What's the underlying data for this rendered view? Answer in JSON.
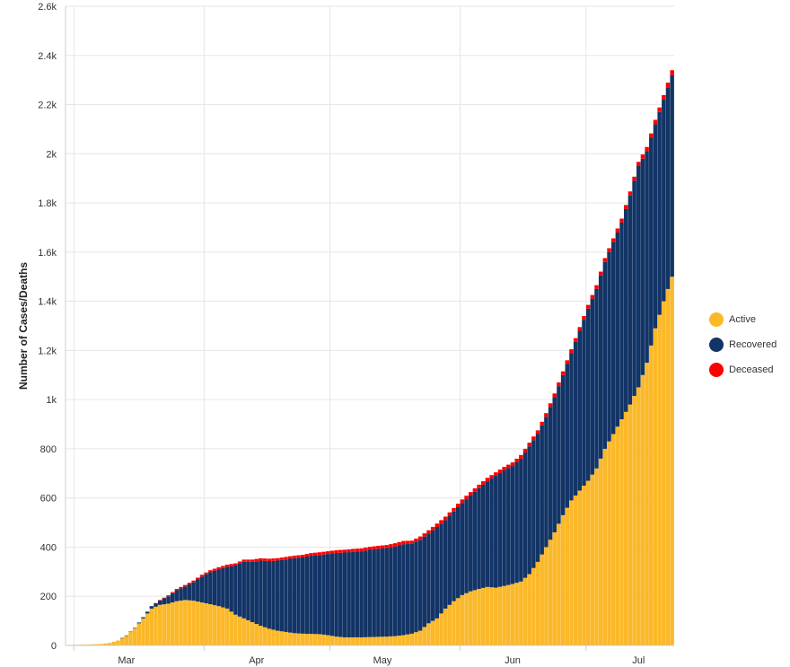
{
  "chart_data": {
    "type": "bar",
    "stacked": true,
    "ylabel": "Number of Cases/Deaths",
    "xlabel": "",
    "ylim": [
      0,
      2600
    ],
    "y_ticks": [
      "0",
      "200",
      "400",
      "600",
      "800",
      "1k",
      "1.2k",
      "1.4k",
      "1.6k",
      "1.8k",
      "2k",
      "2.2k",
      "2.4k",
      "2.6k"
    ],
    "y_tick_values": [
      0,
      200,
      400,
      600,
      800,
      1000,
      1200,
      1400,
      1600,
      1800,
      2000,
      2200,
      2400,
      2600
    ],
    "x_ticks": [
      "Mar",
      "Apr",
      "May",
      "Jun",
      "Jul"
    ],
    "x_tick_day_index": [
      14,
      45,
      75,
      106,
      136
    ],
    "x_month_start_index": [
      2,
      33,
      63,
      94,
      124
    ],
    "day_count": 145,
    "grid": true,
    "legend_position": "right",
    "series": [
      {
        "name": "Active",
        "color": "#fbb829",
        "anchors": [
          [
            0,
            2
          ],
          [
            5,
            4
          ],
          [
            8,
            6
          ],
          [
            10,
            10
          ],
          [
            12,
            20
          ],
          [
            14,
            40
          ],
          [
            16,
            70
          ],
          [
            18,
            110
          ],
          [
            20,
            150
          ],
          [
            22,
            165
          ],
          [
            24,
            170
          ],
          [
            26,
            180
          ],
          [
            28,
            185
          ],
          [
            30,
            182
          ],
          [
            32,
            175
          ],
          [
            34,
            168
          ],
          [
            36,
            160
          ],
          [
            38,
            150
          ],
          [
            40,
            125
          ],
          [
            42,
            110
          ],
          [
            44,
            95
          ],
          [
            46,
            80
          ],
          [
            48,
            68
          ],
          [
            50,
            60
          ],
          [
            52,
            55
          ],
          [
            54,
            50
          ],
          [
            56,
            48
          ],
          [
            58,
            47
          ],
          [
            60,
            46
          ],
          [
            62,
            42
          ],
          [
            64,
            36
          ],
          [
            66,
            33
          ],
          [
            68,
            33
          ],
          [
            70,
            33
          ],
          [
            72,
            34
          ],
          [
            74,
            35
          ],
          [
            76,
            36
          ],
          [
            78,
            38
          ],
          [
            80,
            42
          ],
          [
            82,
            48
          ],
          [
            84,
            60
          ],
          [
            86,
            90
          ],
          [
            88,
            110
          ],
          [
            90,
            150
          ],
          [
            92,
            180
          ],
          [
            94,
            205
          ],
          [
            96,
            220
          ],
          [
            98,
            230
          ],
          [
            100,
            238
          ],
          [
            102,
            235
          ],
          [
            104,
            242
          ],
          [
            106,
            250
          ],
          [
            108,
            260
          ],
          [
            110,
            290
          ],
          [
            112,
            340
          ],
          [
            114,
            400
          ],
          [
            116,
            460
          ],
          [
            118,
            530
          ],
          [
            120,
            590
          ],
          [
            122,
            630
          ],
          [
            124,
            670
          ],
          [
            126,
            720
          ],
          [
            128,
            800
          ],
          [
            130,
            860
          ],
          [
            132,
            920
          ],
          [
            134,
            980
          ],
          [
            136,
            1050
          ],
          [
            138,
            1150
          ],
          [
            140,
            1290
          ],
          [
            142,
            1400
          ],
          [
            144,
            1500
          ]
        ]
      },
      {
        "name": "Recovered",
        "color": "#123466",
        "anchors": [
          [
            0,
            0
          ],
          [
            12,
            0
          ],
          [
            16,
            2
          ],
          [
            18,
            5
          ],
          [
            20,
            10
          ],
          [
            22,
            18
          ],
          [
            24,
            30
          ],
          [
            26,
            45
          ],
          [
            28,
            55
          ],
          [
            30,
            75
          ],
          [
            32,
            105
          ],
          [
            34,
            130
          ],
          [
            36,
            150
          ],
          [
            38,
            170
          ],
          [
            40,
            200
          ],
          [
            42,
            230
          ],
          [
            44,
            245
          ],
          [
            46,
            265
          ],
          [
            48,
            275
          ],
          [
            50,
            285
          ],
          [
            52,
            295
          ],
          [
            54,
            305
          ],
          [
            56,
            310
          ],
          [
            58,
            318
          ],
          [
            60,
            322
          ],
          [
            62,
            330
          ],
          [
            64,
            340
          ],
          [
            66,
            345
          ],
          [
            68,
            348
          ],
          [
            70,
            350
          ],
          [
            72,
            355
          ],
          [
            74,
            358
          ],
          [
            76,
            360
          ],
          [
            78,
            365
          ],
          [
            80,
            370
          ],
          [
            82,
            365
          ],
          [
            84,
            370
          ],
          [
            86,
            365
          ],
          [
            88,
            372
          ],
          [
            90,
            360
          ],
          [
            92,
            365
          ],
          [
            94,
            375
          ],
          [
            96,
            390
          ],
          [
            98,
            410
          ],
          [
            100,
            430
          ],
          [
            102,
            455
          ],
          [
            104,
            470
          ],
          [
            106,
            480
          ],
          [
            108,
            500
          ],
          [
            110,
            520
          ],
          [
            112,
            520
          ],
          [
            114,
            530
          ],
          [
            116,
            550
          ],
          [
            118,
            570
          ],
          [
            120,
            600
          ],
          [
            122,
            650
          ],
          [
            124,
            700
          ],
          [
            126,
            730
          ],
          [
            128,
            760
          ],
          [
            130,
            780
          ],
          [
            132,
            800
          ],
          [
            134,
            850
          ],
          [
            136,
            900
          ],
          [
            138,
            860
          ],
          [
            140,
            830
          ],
          [
            142,
            820
          ],
          [
            144,
            820
          ]
        ]
      },
      {
        "name": "Deceased",
        "color": "#ff0000",
        "anchors": [
          [
            0,
            0
          ],
          [
            20,
            0
          ],
          [
            22,
            2
          ],
          [
            24,
            4
          ],
          [
            26,
            5
          ],
          [
            28,
            6
          ],
          [
            30,
            7
          ],
          [
            34,
            8
          ],
          [
            40,
            9
          ],
          [
            50,
            10
          ],
          [
            60,
            11
          ],
          [
            70,
            12
          ],
          [
            80,
            13
          ],
          [
            90,
            14
          ],
          [
            100,
            14
          ],
          [
            110,
            15
          ],
          [
            120,
            15
          ],
          [
            130,
            16
          ],
          [
            140,
            18
          ],
          [
            144,
            20
          ]
        ]
      }
    ]
  }
}
